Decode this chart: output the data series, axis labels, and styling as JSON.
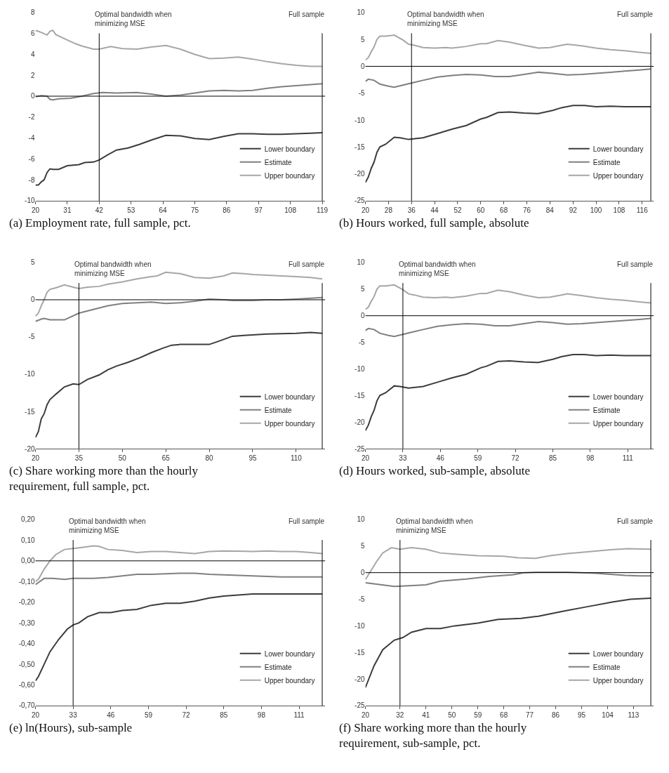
{
  "chart_data": [
    {
      "type": "line",
      "title": "(a) Employment rate, full sample, pct.",
      "xlim": [
        20,
        120
      ],
      "xticks": [
        20,
        31,
        42,
        53,
        64,
        75,
        86,
        97,
        108,
        119
      ],
      "ylim": [
        -10,
        8
      ],
      "yticks": [
        -10,
        -8,
        -6,
        -4,
        -2,
        0,
        2,
        4,
        6,
        8
      ],
      "legend": "bottom right",
      "marker": "none",
      "ref_lines": [
        {
          "axis": "x",
          "value": 42,
          "label": "Optimal bandwidth when minimizing MSE",
          "color": "#000000"
        },
        {
          "axis": "x",
          "value": 119,
          "label": "Full sample",
          "color": "#000000"
        },
        {
          "axis": "y",
          "value": 0,
          "color": "#000000"
        }
      ],
      "series": [
        {
          "name": "Lower boundary",
          "color": "#3c3c3c",
          "x": [
            20,
            21,
            22,
            23,
            24,
            25,
            26,
            28,
            31,
            35,
            37,
            40,
            42,
            45,
            48,
            52,
            56,
            60,
            65,
            70,
            75,
            80,
            85,
            90,
            95,
            100,
            105,
            110,
            115,
            119
          ],
          "values": [
            -8.5,
            -8.5,
            -8.2,
            -8.0,
            -7.3,
            -6.95,
            -7.0,
            -7.0,
            -6.65,
            -6.55,
            -6.35,
            -6.3,
            -6.1,
            -5.6,
            -5.15,
            -4.95,
            -4.6,
            -4.2,
            -3.75,
            -3.8,
            -4.05,
            -4.15,
            -3.85,
            -3.6,
            -3.6,
            -3.65,
            -3.65,
            -3.6,
            -3.55,
            -3.5
          ]
        },
        {
          "name": "Estimate",
          "color": "#7f7f7f",
          "x": [
            20,
            22,
            24,
            25,
            26,
            28,
            32,
            36,
            40,
            43,
            48,
            55,
            60,
            65,
            70,
            75,
            80,
            85,
            90,
            95,
            100,
            105,
            110,
            115,
            119
          ],
          "values": [
            -0.05,
            0.05,
            0.0,
            -0.3,
            -0.35,
            -0.25,
            -0.2,
            0.0,
            0.25,
            0.35,
            0.3,
            0.35,
            0.2,
            0.0,
            0.1,
            0.3,
            0.5,
            0.55,
            0.5,
            0.55,
            0.75,
            0.9,
            1.0,
            1.1,
            1.2
          ]
        },
        {
          "name": "Upper boundary",
          "color": "#a6a6a6",
          "x": [
            20,
            22,
            24,
            25,
            26,
            27,
            30,
            34,
            36,
            40,
            42,
            46,
            50,
            55,
            60,
            65,
            70,
            75,
            80,
            85,
            90,
            95,
            100,
            105,
            110,
            115,
            119
          ],
          "values": [
            6.3,
            6.1,
            5.85,
            6.2,
            6.3,
            5.9,
            5.5,
            5.0,
            4.8,
            4.5,
            4.5,
            4.75,
            4.55,
            4.5,
            4.7,
            4.85,
            4.5,
            4.0,
            3.6,
            3.65,
            3.75,
            3.55,
            3.3,
            3.1,
            2.95,
            2.85,
            2.85
          ]
        }
      ]
    },
    {
      "type": "line",
      "title": "(b) Hours worked, full sample, absolute",
      "xlim": [
        20,
        120
      ],
      "xticks": [
        20,
        28,
        36,
        44,
        52,
        60,
        68,
        76,
        84,
        92,
        100,
        108,
        116
      ],
      "ylim": [
        -25,
        10
      ],
      "yticks": [
        -25,
        -20,
        -15,
        -10,
        -5,
        0,
        5,
        10
      ],
      "legend": "bottom right",
      "marker": "none",
      "ref_lines": [
        {
          "axis": "x",
          "value": 36,
          "label": "Optimal bandwidth when minimizing MSE",
          "color": "#000000"
        },
        {
          "axis": "x",
          "value": 119,
          "label": "Full sample",
          "color": "#000000"
        },
        {
          "axis": "y",
          "value": 0,
          "color": "#000000"
        }
      ],
      "series": [
        {
          "name": "Lower boundary",
          "color": "#3c3c3c",
          "x": [
            20,
            21,
            22,
            23,
            24,
            25,
            27,
            30,
            32,
            35,
            40,
            45,
            50,
            55,
            60,
            62,
            66,
            70,
            75,
            80,
            85,
            88,
            92,
            96,
            100,
            105,
            110,
            115,
            119
          ],
          "values": [
            -21.6,
            -20.6,
            -19.0,
            -17.8,
            -16.0,
            -15.0,
            -14.5,
            -13.2,
            -13.3,
            -13.6,
            -13.3,
            -12.5,
            -11.7,
            -11.0,
            -9.8,
            -9.5,
            -8.6,
            -8.5,
            -8.7,
            -8.8,
            -8.2,
            -7.7,
            -7.3,
            -7.3,
            -7.5,
            -7.4,
            -7.5,
            -7.5,
            -7.5
          ]
        },
        {
          "name": "Estimate",
          "color": "#7f7f7f",
          "x": [
            20,
            21,
            23,
            25,
            28,
            30,
            33,
            36,
            40,
            45,
            50,
            55,
            60,
            65,
            70,
            75,
            80,
            85,
            90,
            95,
            100,
            105,
            110,
            115,
            119
          ],
          "values": [
            -2.8,
            -2.4,
            -2.6,
            -3.3,
            -3.7,
            -3.9,
            -3.5,
            -3.1,
            -2.6,
            -2.0,
            -1.7,
            -1.5,
            -1.6,
            -1.9,
            -1.9,
            -1.5,
            -1.1,
            -1.3,
            -1.6,
            -1.5,
            -1.3,
            -1.1,
            -0.9,
            -0.7,
            -0.5
          ]
        },
        {
          "name": "Upper boundary",
          "color": "#a6a6a6",
          "x": [
            20,
            21,
            22,
            23,
            24,
            25,
            27,
            30,
            33,
            35,
            37,
            40,
            44,
            48,
            50,
            55,
            60,
            62,
            66,
            70,
            75,
            80,
            84,
            88,
            90,
            95,
            100,
            105,
            110,
            115,
            119
          ],
          "values": [
            1.2,
            1.6,
            2.7,
            3.6,
            5.0,
            5.6,
            5.6,
            5.8,
            4.9,
            4.1,
            3.9,
            3.5,
            3.4,
            3.5,
            3.4,
            3.7,
            4.2,
            4.2,
            4.8,
            4.5,
            3.9,
            3.4,
            3.5,
            3.9,
            4.1,
            3.8,
            3.4,
            3.1,
            2.9,
            2.6,
            2.4
          ]
        }
      ]
    },
    {
      "type": "line",
      "title": "(c) Share working more than the hourly requirement, full sample, pct.",
      "xlim": [
        20,
        120
      ],
      "xticks": [
        20,
        35,
        50,
        65,
        80,
        95,
        110
      ],
      "ylim": [
        -20,
        5
      ],
      "yticks": [
        -20,
        -15,
        -10,
        -5,
        0,
        5
      ],
      "legend": "bottom right",
      "marker": "none",
      "ref_lines": [
        {
          "axis": "x",
          "value": 35,
          "label": "Optimal bandwidth when minimizing MSE",
          "color": "#000000"
        },
        {
          "axis": "x",
          "value": 119,
          "label": "Full sample",
          "color": "#000000"
        },
        {
          "axis": "y",
          "value": 0,
          "color": "#000000"
        }
      ],
      "series": [
        {
          "name": "Lower boundary",
          "color": "#3c3c3c",
          "x": [
            20,
            21,
            22,
            23,
            24,
            25,
            27,
            30,
            33,
            35,
            38,
            42,
            45,
            48,
            52,
            56,
            60,
            64,
            67,
            70,
            75,
            80,
            83,
            88,
            92,
            100,
            110,
            115,
            119
          ],
          "values": [
            -18.5,
            -17.7,
            -16.0,
            -15.3,
            -14.1,
            -13.4,
            -12.7,
            -11.7,
            -11.3,
            -11.4,
            -10.7,
            -10.1,
            -9.4,
            -8.9,
            -8.4,
            -7.8,
            -7.1,
            -6.5,
            -6.1,
            -6.0,
            -6.0,
            -6.0,
            -5.6,
            -4.9,
            -4.8,
            -4.6,
            -4.5,
            -4.4,
            -4.5
          ]
        },
        {
          "name": "Estimate",
          "color": "#7f7f7f",
          "x": [
            20,
            22,
            23,
            25,
            27,
            30,
            35,
            40,
            45,
            50,
            55,
            60,
            65,
            70,
            75,
            80,
            85,
            88,
            92,
            95,
            100,
            105,
            110,
            115,
            119
          ],
          "values": [
            -2.9,
            -2.6,
            -2.5,
            -2.7,
            -2.7,
            -2.7,
            -1.8,
            -1.3,
            -0.8,
            -0.5,
            -0.4,
            -0.3,
            -0.5,
            -0.4,
            -0.2,
            0.1,
            0.0,
            -0.1,
            -0.1,
            -0.1,
            0.0,
            0.0,
            0.1,
            0.2,
            0.3
          ]
        },
        {
          "name": "Upper boundary",
          "color": "#a6a6a6",
          "x": [
            20,
            21,
            22,
            23,
            24,
            25,
            27,
            30,
            33,
            35,
            38,
            42,
            45,
            50,
            55,
            60,
            62,
            65,
            70,
            75,
            80,
            85,
            88,
            92,
            95,
            100,
            105,
            110,
            115,
            119
          ],
          "values": [
            -2.2,
            -1.8,
            -0.8,
            0.0,
            1.0,
            1.4,
            1.6,
            2.0,
            1.7,
            1.5,
            1.7,
            1.8,
            2.1,
            2.4,
            2.8,
            3.1,
            3.2,
            3.7,
            3.5,
            3.0,
            2.9,
            3.2,
            3.6,
            3.5,
            3.4,
            3.3,
            3.2,
            3.1,
            3.0,
            2.8
          ]
        }
      ]
    },
    {
      "type": "line",
      "title": "(d) Hours worked, sub-sample, absolute",
      "xlim": [
        20,
        120
      ],
      "xticks": [
        20,
        33,
        46,
        59,
        72,
        85,
        98,
        111
      ],
      "ylim": [
        -25,
        10
      ],
      "yticks": [
        -25,
        -20,
        -15,
        -10,
        -5,
        0,
        5,
        10
      ],
      "legend": "bottom right",
      "marker": "none",
      "ref_lines": [
        {
          "axis": "x",
          "value": 33,
          "label": "Optimal bandwidth when minimizing MSE",
          "color": "#000000"
        },
        {
          "axis": "x",
          "value": 119,
          "label": "Full sample",
          "color": "#000000"
        },
        {
          "axis": "y",
          "value": 0,
          "color": "#000000"
        }
      ],
      "series": [
        {
          "name": "Lower boundary",
          "color": "#3c3c3c",
          "x": [
            20,
            21,
            22,
            23,
            24,
            25,
            27,
            30,
            32,
            35,
            40,
            45,
            50,
            55,
            60,
            62,
            66,
            70,
            75,
            80,
            85,
            88,
            92,
            96,
            100,
            105,
            110,
            115,
            119
          ],
          "values": [
            -21.6,
            -20.6,
            -19.0,
            -17.8,
            -16.0,
            -15.0,
            -14.5,
            -13.2,
            -13.3,
            -13.6,
            -13.3,
            -12.5,
            -11.7,
            -11.0,
            -9.8,
            -9.5,
            -8.6,
            -8.5,
            -8.7,
            -8.8,
            -8.2,
            -7.7,
            -7.3,
            -7.3,
            -7.5,
            -7.4,
            -7.5,
            -7.5,
            -7.5
          ]
        },
        {
          "name": "Estimate",
          "color": "#7f7f7f",
          "x": [
            20,
            21,
            23,
            25,
            28,
            30,
            33,
            36,
            40,
            45,
            50,
            55,
            60,
            65,
            70,
            75,
            80,
            85,
            90,
            95,
            100,
            105,
            110,
            115,
            119
          ],
          "values": [
            -2.8,
            -2.4,
            -2.6,
            -3.3,
            -3.7,
            -3.9,
            -3.5,
            -3.1,
            -2.6,
            -2.0,
            -1.7,
            -1.5,
            -1.6,
            -1.9,
            -1.9,
            -1.5,
            -1.1,
            -1.3,
            -1.6,
            -1.5,
            -1.3,
            -1.1,
            -0.9,
            -0.7,
            -0.5
          ]
        },
        {
          "name": "Upper boundary",
          "color": "#a6a6a6",
          "x": [
            20,
            21,
            22,
            23,
            24,
            25,
            27,
            30,
            33,
            35,
            37,
            40,
            44,
            48,
            50,
            55,
            60,
            62,
            66,
            70,
            75,
            80,
            84,
            88,
            90,
            95,
            100,
            105,
            110,
            115,
            119
          ],
          "values": [
            1.2,
            1.6,
            2.7,
            3.6,
            5.0,
            5.6,
            5.6,
            5.8,
            4.9,
            4.1,
            3.9,
            3.5,
            3.4,
            3.5,
            3.4,
            3.7,
            4.2,
            4.2,
            4.8,
            4.5,
            3.9,
            3.4,
            3.5,
            3.9,
            4.1,
            3.8,
            3.4,
            3.1,
            2.9,
            2.6,
            2.4
          ]
        }
      ]
    },
    {
      "type": "line",
      "title": "(e) ln(Hours), sub-sample",
      "xlim": [
        20,
        120
      ],
      "xticks": [
        20,
        33,
        46,
        59,
        72,
        85,
        98,
        111
      ],
      "ylim": [
        -0.7,
        0.2
      ],
      "yticks": [
        {
          "value": -0.7,
          "label": "-0,70"
        },
        {
          "value": -0.6,
          "label": "-0,60"
        },
        {
          "value": -0.5,
          "label": "-0,50"
        },
        {
          "value": -0.4,
          "label": "-0,40"
        },
        {
          "value": -0.3,
          "label": "-0,30"
        },
        {
          "value": -0.2,
          "label": "-0,20"
        },
        {
          "value": -0.1,
          "label": "-0,10"
        },
        {
          "value": 0,
          "label": "0,00"
        },
        {
          "value": 0.1,
          "label": "0,10"
        },
        {
          "value": 0.2,
          "label": "0,20"
        }
      ],
      "legend": "bottom right",
      "marker": "none",
      "ref_lines": [
        {
          "axis": "x",
          "value": 33,
          "label": "Optimal bandwidth when minimizing MSE",
          "color": "#000000"
        },
        {
          "axis": "x",
          "value": 119,
          "label": "Full sample",
          "color": "#000000"
        },
        {
          "axis": "y",
          "value": 0,
          "color": "#000000"
        }
      ],
      "series": [
        {
          "name": "Lower boundary",
          "color": "#3c3c3c",
          "x": [
            20,
            21,
            23,
            25,
            28,
            31,
            33,
            35,
            38,
            42,
            46,
            50,
            55,
            60,
            65,
            70,
            75,
            80,
            85,
            90,
            95,
            100,
            110,
            119
          ],
          "values": [
            -0.58,
            -0.56,
            -0.5,
            -0.44,
            -0.38,
            -0.33,
            -0.31,
            -0.3,
            -0.27,
            -0.25,
            -0.25,
            -0.24,
            -0.235,
            -0.215,
            -0.205,
            -0.205,
            -0.195,
            -0.18,
            -0.17,
            -0.165,
            -0.16,
            -0.16,
            -0.16,
            -0.16
          ]
        },
        {
          "name": "Estimate",
          "color": "#7f7f7f",
          "x": [
            20,
            21,
            23,
            26,
            30,
            33,
            40,
            45,
            50,
            55,
            60,
            65,
            70,
            75,
            80,
            85,
            90,
            95,
            100,
            105,
            110,
            119
          ],
          "values": [
            -0.115,
            -0.105,
            -0.085,
            -0.085,
            -0.09,
            -0.085,
            -0.085,
            -0.08,
            -0.073,
            -0.065,
            -0.065,
            -0.063,
            -0.06,
            -0.06,
            -0.065,
            -0.068,
            -0.07,
            -0.073,
            -0.075,
            -0.078,
            -0.078,
            -0.078
          ]
        },
        {
          "name": "Upper boundary",
          "color": "#a6a6a6",
          "x": [
            20,
            21,
            23,
            25,
            27,
            30,
            33,
            36,
            40,
            42,
            45,
            50,
            55,
            60,
            65,
            70,
            75,
            80,
            85,
            90,
            95,
            100,
            105,
            110,
            115,
            119
          ],
          "values": [
            -0.1,
            -0.09,
            -0.04,
            0.0,
            0.03,
            0.055,
            0.06,
            0.065,
            0.072,
            0.07,
            0.055,
            0.05,
            0.04,
            0.045,
            0.045,
            0.04,
            0.035,
            0.045,
            0.048,
            0.047,
            0.045,
            0.048,
            0.045,
            0.045,
            0.04,
            0.035
          ]
        }
      ]
    },
    {
      "type": "line",
      "title": "(f) Share working more than the hourly requirement, sub-sample, pct.",
      "xlim": [
        20,
        120
      ],
      "xticks": [
        20,
        32,
        41,
        50,
        59,
        68,
        77,
        86,
        95,
        104,
        113
      ],
      "ylim": [
        -25,
        10
      ],
      "yticks": [
        -25,
        -20,
        -15,
        -10,
        -5,
        0,
        5,
        10
      ],
      "legend": "bottom right",
      "marker": "none",
      "ref_lines": [
        {
          "axis": "x",
          "value": 32,
          "label": "Optimal bandwidth when minimizing MSE",
          "color": "#000000"
        },
        {
          "axis": "x",
          "value": 119,
          "label": "Full sample",
          "color": "#000000"
        },
        {
          "axis": "y",
          "value": 0,
          "color": "#000000"
        }
      ],
      "series": [
        {
          "name": "Lower boundary",
          "color": "#3c3c3c",
          "x": [
            20,
            23,
            26,
            30,
            33,
            36,
            41,
            46,
            51,
            59,
            66,
            74,
            80,
            89,
            97,
            106,
            112,
            119
          ],
          "values": [
            -21.6,
            -17.5,
            -14.5,
            -12.7,
            -12.2,
            -11.2,
            -10.5,
            -10.5,
            -10.0,
            -9.5,
            -8.8,
            -8.6,
            -8.2,
            -7.2,
            -6.4,
            -5.5,
            -5.0,
            -4.8
          ]
        },
        {
          "name": "Estimate",
          "color": "#7f7f7f",
          "x": [
            20,
            30,
            34,
            41,
            46,
            55,
            63,
            71,
            75,
            80,
            90,
            100,
            110,
            115,
            119
          ],
          "values": [
            -1.9,
            -2.6,
            -2.5,
            -2.3,
            -1.6,
            -1.2,
            -0.7,
            -0.4,
            0.0,
            0.1,
            0.1,
            -0.1,
            -0.5,
            -0.6,
            -0.6
          ]
        },
        {
          "name": "Upper boundary",
          "color": "#a6a6a6",
          "x": [
            20,
            24,
            26,
            29,
            32,
            36,
            41,
            46,
            51,
            59,
            68,
            73,
            79,
            84,
            90,
            97,
            105,
            111,
            119
          ],
          "values": [
            -1.3,
            2.2,
            3.7,
            4.7,
            4.4,
            4.7,
            4.4,
            3.7,
            3.5,
            3.2,
            3.1,
            2.8,
            2.7,
            3.2,
            3.6,
            3.9,
            4.3,
            4.5,
            4.4
          ]
        }
      ]
    }
  ]
}
